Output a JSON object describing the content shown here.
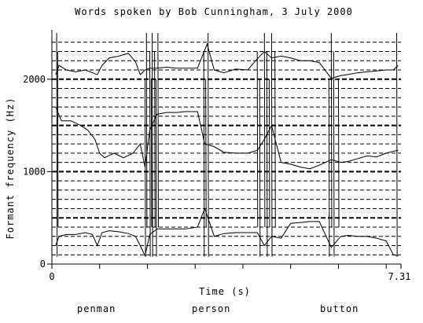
{
  "chart_data": {
    "type": "line",
    "title": "Words spoken by Bob Cunningham, 3 July 2000",
    "xlabel": "Time (s)",
    "ylabel": "Formant frequency (Hz)",
    "xlim": [
      0,
      7.31
    ],
    "ylim": [
      0,
      2500
    ],
    "x_tick_labels": [
      "0",
      "7.31"
    ],
    "x_minor_ticks": [
      0,
      1,
      2,
      3,
      4,
      5,
      6,
      7
    ],
    "y_ticks": [
      0,
      1000,
      2000
    ],
    "y_tick_labels": [
      "0",
      "1000",
      "2000"
    ],
    "grid": {
      "dashed_lines_every_hz": 100,
      "heavy_dashed_lines_every_hz": 500
    },
    "series": [
      {
        "x": [
          0.08,
          0.15,
          0.3,
          0.5,
          0.7,
          0.85,
          0.95,
          1.05,
          1.2,
          1.4,
          1.6,
          1.75,
          1.85,
          1.95,
          2.05,
          2.2,
          2.4,
          2.6,
          2.8,
          3.05,
          3.25,
          3.4,
          3.6,
          3.85,
          4.1,
          4.3,
          4.45,
          4.6,
          4.8,
          5.0,
          5.2,
          5.4,
          5.6,
          5.85,
          6.05,
          6.2,
          6.4,
          6.6,
          6.8,
          7.0,
          7.15,
          7.25
        ],
        "values": [
          2050,
          2150,
          2100,
          2080,
          2100,
          2070,
          2050,
          2150,
          2230,
          2250,
          2280,
          2190,
          2050,
          2100,
          2120,
          2120,
          2130,
          2120,
          2120,
          2120,
          2380,
          2100,
          2070,
          2110,
          2100,
          2220,
          2300,
          2230,
          2250,
          2230,
          2200,
          2200,
          2180,
          2010,
          2040,
          2050,
          2070,
          2080,
          2090,
          2100,
          2100,
          2150
        ]
      },
      {
        "x": [
          0.08,
          0.2,
          0.4,
          0.6,
          0.75,
          0.9,
          1.0,
          1.1,
          1.3,
          1.5,
          1.7,
          1.85,
          1.95,
          2.05,
          2.2,
          2.4,
          2.6,
          2.8,
          3.05,
          3.2,
          3.4,
          3.6,
          3.85,
          4.1,
          4.3,
          4.45,
          4.6,
          4.8,
          5.0,
          5.2,
          5.4,
          5.6,
          5.85,
          6.05,
          6.2,
          6.4,
          6.6,
          6.8,
          7.0,
          7.15,
          7.25
        ],
        "values": [
          1700,
          1550,
          1550,
          1500,
          1450,
          1350,
          1200,
          1150,
          1200,
          1150,
          1200,
          1300,
          1050,
          1450,
          1620,
          1640,
          1640,
          1650,
          1650,
          1300,
          1270,
          1210,
          1200,
          1200,
          1230,
          1350,
          1500,
          1100,
          1080,
          1050,
          1030,
          1070,
          1130,
          1100,
          1110,
          1140,
          1170,
          1160,
          1200,
          1220,
          1230
        ]
      },
      {
        "x": [
          0.08,
          0.15,
          0.3,
          0.5,
          0.7,
          0.85,
          0.95,
          1.05,
          1.2,
          1.4,
          1.6,
          1.75,
          1.85,
          1.95,
          2.05,
          2.2,
          2.4,
          2.6,
          2.8,
          3.05,
          3.2,
          3.4,
          3.6,
          3.85,
          4.1,
          4.3,
          4.45,
          4.6,
          4.8,
          5.0,
          5.2,
          5.4,
          5.6,
          5.85,
          6.05,
          6.2,
          6.4,
          6.6,
          6.8,
          7.0,
          7.15,
          7.25
        ],
        "values": [
          200,
          300,
          320,
          320,
          340,
          320,
          200,
          340,
          360,
          350,
          330,
          300,
          200,
          90,
          320,
          380,
          380,
          380,
          380,
          400,
          600,
          300,
          330,
          340,
          340,
          340,
          200,
          300,
          280,
          440,
          450,
          460,
          460,
          180,
          300,
          310,
          300,
          300,
          280,
          250,
          100,
          90
        ]
      }
    ],
    "annotations": [
      "penman",
      "person",
      "button"
    ]
  },
  "colors": {
    "line": "#000000",
    "background": "#ffffff"
  }
}
